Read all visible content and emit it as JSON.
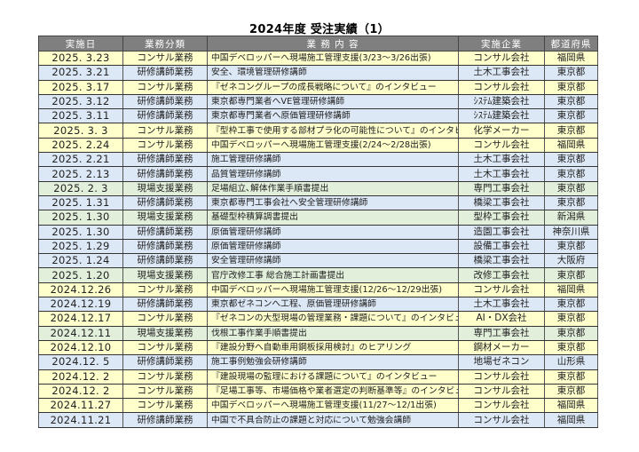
{
  "title": "2024年度 受注実績（1）",
  "colors": {
    "header": "#7f7f7f",
    "consult": "#ffffcc",
    "training": "#dde8f6",
    "site": "#e2efda"
  },
  "headers": [
    "実施日",
    "業務分類",
    "業 務 内 容",
    "実施企業",
    "都道府県"
  ],
  "rows": [
    {
      "date": "2025. 3.23",
      "category": "コンサル業務",
      "content": "中国デベロッパーへ現場施工管理支援(3/23〜3/26出張)",
      "company": "コンサル会社",
      "pref": "福岡県",
      "type": "consult"
    },
    {
      "date": "2025. 3.21",
      "category": "研修講師業務",
      "content": "安全、環境管理研修講師",
      "company": "土木工事会社",
      "pref": "東京都",
      "type": "training"
    },
    {
      "date": "2025. 3.17",
      "category": "コンサル業務",
      "content": "『ゼネコングループの成長戦略について』のインタビュー",
      "company": "コンサル会社",
      "pref": "東京都",
      "type": "consult"
    },
    {
      "date": "2025. 3.12",
      "category": "研修講師業務",
      "content": "東京都専門業者へVE管理研修講師",
      "company": "ｼｽﾃﾑ建築会社",
      "pref": "東京都",
      "type": "training"
    },
    {
      "date": "2025. 3.11",
      "category": "研修講師業務",
      "content": "東京都専門業者へ原価管理研修講師",
      "company": "ｼｽﾃﾑ建築会社",
      "pref": "東京都",
      "type": "training"
    },
    {
      "date": "2025. 3. 3",
      "category": "コンサル業務",
      "content": "『型枠工事で使用する部材プラ化の可能性について』のインタビュー",
      "company": "化学メーカー",
      "pref": "東京都",
      "type": "consult"
    },
    {
      "date": "2025. 2.24",
      "category": "コンサル業務",
      "content": "中国デベロッパーへ現場施工管理支援(2/24〜2/28出張)",
      "company": "コンサル会社",
      "pref": "福岡県",
      "type": "consult"
    },
    {
      "date": "2025. 2.21",
      "category": "研修講師業務",
      "content": "施工管理研修講師",
      "company": "土木工事会社",
      "pref": "東京都",
      "type": "training"
    },
    {
      "date": "2025. 2.13",
      "category": "研修講師業務",
      "content": "品質管理研修講師",
      "company": "土木工事会社",
      "pref": "東京都",
      "type": "training"
    },
    {
      "date": "2025. 2. 3",
      "category": "現場支援業務",
      "content": "足場組立､解体作業手順書提出",
      "company": "専門工事会社",
      "pref": "東京都",
      "type": "site"
    },
    {
      "date": "2025. 1.31",
      "category": "研修講師業務",
      "content": "東京都専門工事会社へ安全管理研修講師",
      "company": "橋梁工事会社",
      "pref": "東京都",
      "type": "training"
    },
    {
      "date": "2025. 1.30",
      "category": "現場支援業務",
      "content": "基礎型枠積算調書提出",
      "company": "型枠工事会社",
      "pref": "新潟県",
      "type": "site"
    },
    {
      "date": "2025. 1.30",
      "category": "研修講師業務",
      "content": "原価管理研修講師",
      "company": "造園工事会社",
      "pref": "神奈川県",
      "type": "training"
    },
    {
      "date": "2025. 1.29",
      "category": "研修講師業務",
      "content": "原価管理研修講師",
      "company": "設備工事会社",
      "pref": "東京都",
      "type": "training"
    },
    {
      "date": "2025. 1.24",
      "category": "研修講師業務",
      "content": "安全管理研修講師",
      "company": "橋梁工事会社",
      "pref": "大阪府",
      "type": "training"
    },
    {
      "date": "2025. 1.20",
      "category": "現場支援業務",
      "content": "官庁改修工事 総合施工計画書提出",
      "company": "改修工事会社",
      "pref": "東京都",
      "type": "site"
    },
    {
      "date": "2024.12.26",
      "category": "コンサル業務",
      "content": "中国デベロッパーへ現場施工管理支援(12/26〜12/29出張)",
      "company": "コンサル会社",
      "pref": "福岡県",
      "type": "consult"
    },
    {
      "date": "2024.12.19",
      "category": "研修講師業務",
      "content": "東京都ゼネコンへ工程、原価管理研修講師",
      "company": "土木工事会社",
      "pref": "東京都",
      "type": "training"
    },
    {
      "date": "2024.12.17",
      "category": "コンサル業務",
      "content": "『ゼネコンの大型現場の管理業務・課題について』のインタビュー",
      "company": "AI・DX会社",
      "pref": "東京都",
      "type": "consult"
    },
    {
      "date": "2024.12.11",
      "category": "現場支援業務",
      "content": "伐根工事作業手順書提出",
      "company": "専門工事会社",
      "pref": "東京都",
      "type": "site"
    },
    {
      "date": "2024.12.10",
      "category": "コンサル業務",
      "content": "『建設分野へ自動車用鋼板採用検討』のヒアリング",
      "company": "鋼材メーカー",
      "pref": "東京都",
      "type": "consult"
    },
    {
      "date": "2024.12. 5",
      "category": "研修講師業務",
      "content": "施工事例勉強会研修講師",
      "company": "地場ゼネコン",
      "pref": "山形県",
      "type": "training"
    },
    {
      "date": "2024.12. 2",
      "category": "コンサル業務",
      "content": "『建設現場の監理における課題について』のインタビュー",
      "company": "コンサル会社",
      "pref": "東京都",
      "type": "consult"
    },
    {
      "date": "2024.12. 2",
      "category": "コンサル業務",
      "content": "『足場工事等、市場価格や業者選定の判断基準等』のインタビュー",
      "company": "コンサル会社",
      "pref": "東京都",
      "type": "consult"
    },
    {
      "date": "2024.11.27",
      "category": "コンサル業務",
      "content": "中国デベロッパーへ現場施工管理支援(11/27〜12/1出張)",
      "company": "コンサル会社",
      "pref": "福岡県",
      "type": "consult"
    },
    {
      "date": "2024.11.21",
      "category": "研修講師業務",
      "content": "中国で不具合防止の課題と対応について勉強会講師",
      "company": "コンサル会社",
      "pref": "福岡県",
      "type": "training"
    }
  ]
}
